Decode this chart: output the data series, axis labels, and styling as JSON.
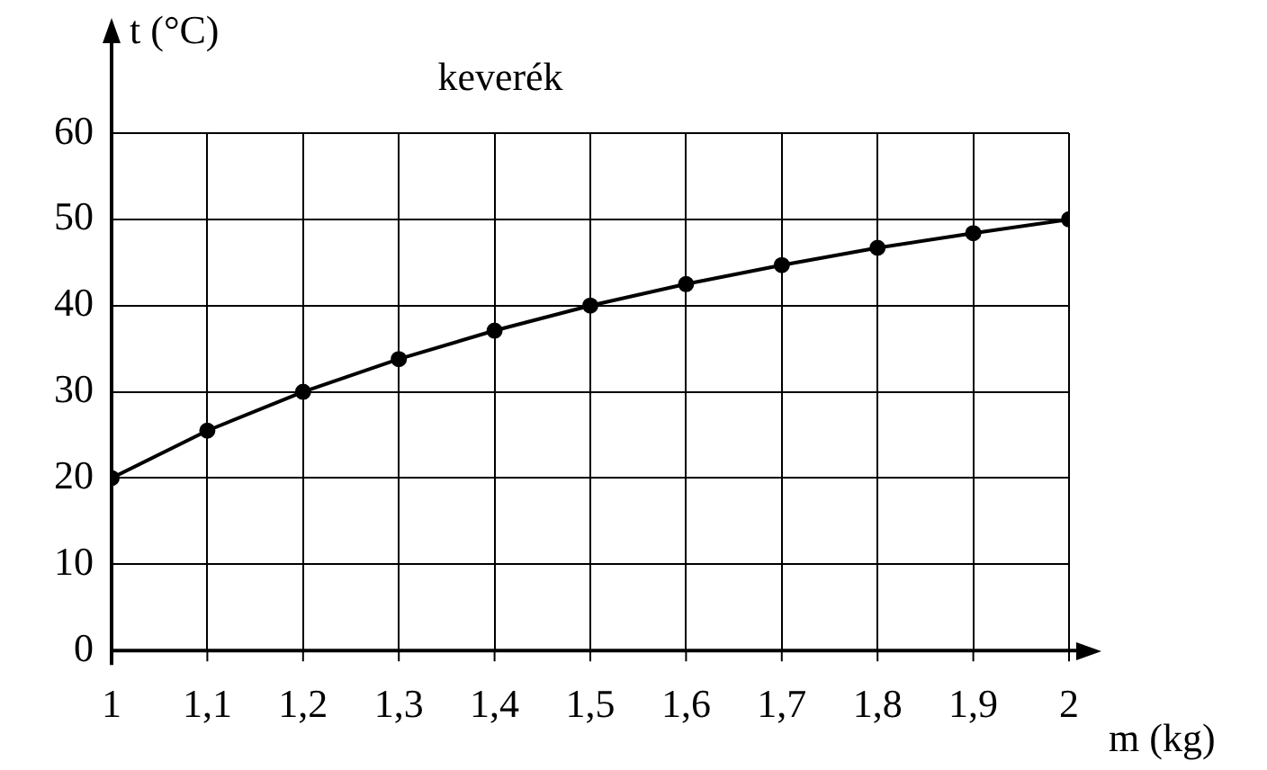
{
  "chart_data": {
    "type": "line",
    "title": "keverék",
    "xlabel": "m (kg)",
    "ylabel": "t (°C)",
    "x": [
      1,
      1.1,
      1.2,
      1.3,
      1.4,
      1.5,
      1.6,
      1.7,
      1.8,
      1.9,
      2
    ],
    "series": [
      {
        "color": "#000000",
        "values": [
          20,
          25.5,
          30,
          33.8,
          37.1,
          40,
          42.5,
          44.7,
          46.7,
          48.4,
          50
        ]
      }
    ],
    "xlim": [
      1,
      2
    ],
    "xticks": [
      1,
      {
        "value": 1.1,
        "label": "1,1"
      },
      {
        "value": 1.2,
        "label": "1,2"
      },
      {
        "value": 1.3,
        "label": "1,3"
      },
      {
        "value": 1.4,
        "label": "1,4"
      },
      {
        "value": 1.5,
        "label": "1,5"
      },
      {
        "value": 1.6,
        "label": "1,6"
      },
      {
        "value": 1.7,
        "label": "1,7"
      },
      {
        "value": 1.8,
        "label": "1,8"
      },
      {
        "value": 1.9,
        "label": "1,9"
      },
      2
    ],
    "ylim": [
      0,
      60
    ],
    "yticks": [
      0,
      10,
      20,
      30,
      40,
      50,
      60
    ],
    "grid": true,
    "legend": false,
    "marker": "circle",
    "line_style": "solid"
  }
}
